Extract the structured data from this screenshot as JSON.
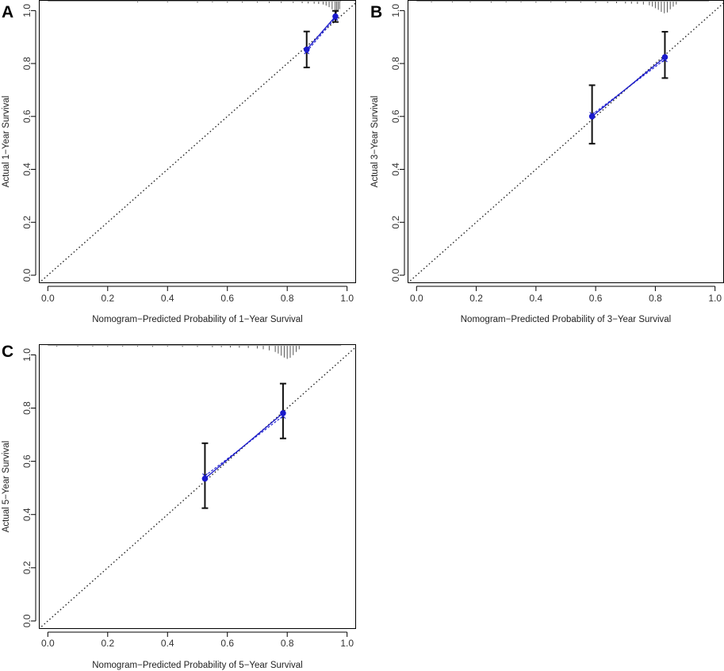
{
  "colors": {
    "calibration": "#1a1acc",
    "errorbar": "#111111",
    "ideal": "#222222",
    "rug": "#555555"
  },
  "chart_data": [
    {
      "panel": "A",
      "type": "scatter",
      "xlabel": "Nomogram−Predicted Probability of 1−Year Survival",
      "ylabel": "Actual 1−Year Survival",
      "xlim": [
        -0.03,
        1.03
      ],
      "ylim": [
        -0.03,
        1.04
      ],
      "xticks": [
        0.0,
        0.2,
        0.4,
        0.6,
        0.8,
        1.0
      ],
      "xtick_labels": [
        "0.0",
        "0.2",
        "0.4",
        "0.6",
        "0.8",
        "1.0"
      ],
      "yticks": [
        0.0,
        0.2,
        0.4,
        0.6,
        0.8,
        1.0
      ],
      "ytick_labels": [
        "0.0",
        "0.2",
        "0.4",
        "0.6",
        "0.8",
        "1.0"
      ],
      "ideal_line": true,
      "points": [
        {
          "x": 0.865,
          "y": 0.853,
          "lo": 0.785,
          "hi": 0.921,
          "y_corrected": 0.845
        },
        {
          "x": 0.961,
          "y": 0.978,
          "lo": 0.957,
          "hi": 0.999,
          "y_corrected": 0.972
        }
      ],
      "rug": [
        {
          "x": 0.3,
          "h": 0.004
        },
        {
          "x": 0.4,
          "h": 0.004
        },
        {
          "x": 0.5,
          "h": 0.005
        },
        {
          "x": 0.55,
          "h": 0.004
        },
        {
          "x": 0.6,
          "h": 0.005
        },
        {
          "x": 0.65,
          "h": 0.005
        },
        {
          "x": 0.7,
          "h": 0.005
        },
        {
          "x": 0.74,
          "h": 0.006
        },
        {
          "x": 0.78,
          "h": 0.006
        },
        {
          "x": 0.82,
          "h": 0.006
        },
        {
          "x": 0.85,
          "h": 0.007
        },
        {
          "x": 0.87,
          "h": 0.008
        },
        {
          "x": 0.89,
          "h": 0.009
        },
        {
          "x": 0.905,
          "h": 0.01
        },
        {
          "x": 0.92,
          "h": 0.012
        },
        {
          "x": 0.93,
          "h": 0.016
        },
        {
          "x": 0.94,
          "h": 0.022
        },
        {
          "x": 0.95,
          "h": 0.03
        },
        {
          "x": 0.96,
          "h": 0.04
        },
        {
          "x": 0.965,
          "h": 0.045
        },
        {
          "x": 0.97,
          "h": 0.04
        },
        {
          "x": 0.975,
          "h": 0.03
        }
      ]
    },
    {
      "panel": "B",
      "type": "scatter",
      "xlabel": "Nomogram−Predicted Probability of 3−Year Survival",
      "ylabel": "Actual 3−Year Survival",
      "xlim": [
        -0.03,
        1.03
      ],
      "ylim": [
        -0.03,
        1.04
      ],
      "xticks": [
        0.0,
        0.2,
        0.4,
        0.6,
        0.8,
        1.0
      ],
      "xtick_labels": [
        "0.0",
        "0.2",
        "0.4",
        "0.6",
        "0.8",
        "1.0"
      ],
      "yticks": [
        0.0,
        0.2,
        0.4,
        0.6,
        0.8,
        1.0
      ],
      "ytick_labels": [
        "0.0",
        "0.2",
        "0.4",
        "0.6",
        "0.8",
        "1.0"
      ],
      "ideal_line": true,
      "points": [
        {
          "x": 0.588,
          "y": 0.6,
          "lo": 0.497,
          "hi": 0.718,
          "y_corrected": 0.607
        },
        {
          "x": 0.832,
          "y": 0.824,
          "lo": 0.745,
          "hi": 0.92,
          "y_corrected": 0.815
        }
      ],
      "rug": [
        {
          "x": 0.05,
          "h": 0.004
        },
        {
          "x": 0.12,
          "h": 0.004
        },
        {
          "x": 0.18,
          "h": 0.004
        },
        {
          "x": 0.25,
          "h": 0.005
        },
        {
          "x": 0.3,
          "h": 0.004
        },
        {
          "x": 0.35,
          "h": 0.004
        },
        {
          "x": 0.4,
          "h": 0.005
        },
        {
          "x": 0.45,
          "h": 0.004
        },
        {
          "x": 0.5,
          "h": 0.005
        },
        {
          "x": 0.55,
          "h": 0.005
        },
        {
          "x": 0.6,
          "h": 0.006
        },
        {
          "x": 0.64,
          "h": 0.006
        },
        {
          "x": 0.67,
          "h": 0.007
        },
        {
          "x": 0.7,
          "h": 0.008
        },
        {
          "x": 0.72,
          "h": 0.009
        },
        {
          "x": 0.74,
          "h": 0.01
        },
        {
          "x": 0.76,
          "h": 0.012
        },
        {
          "x": 0.78,
          "h": 0.015
        },
        {
          "x": 0.79,
          "h": 0.02
        },
        {
          "x": 0.8,
          "h": 0.026
        },
        {
          "x": 0.81,
          "h": 0.032
        },
        {
          "x": 0.82,
          "h": 0.04
        },
        {
          "x": 0.83,
          "h": 0.045
        },
        {
          "x": 0.84,
          "h": 0.042
        },
        {
          "x": 0.85,
          "h": 0.03
        },
        {
          "x": 0.86,
          "h": 0.02
        },
        {
          "x": 0.87,
          "h": 0.012
        }
      ]
    },
    {
      "panel": "C",
      "type": "scatter",
      "xlabel": "Nomogram−Predicted Probability of 5−Year Survival",
      "ylabel": "Actual 5−Year Survival",
      "xlim": [
        -0.03,
        1.03
      ],
      "ylim": [
        -0.03,
        1.04
      ],
      "xticks": [
        0.0,
        0.2,
        0.4,
        0.6,
        0.8,
        1.0
      ],
      "xtick_labels": [
        "0.0",
        "0.2",
        "0.4",
        "0.6",
        "0.8",
        "1.0"
      ],
      "yticks": [
        0.0,
        0.2,
        0.4,
        0.6,
        0.8,
        1.0
      ],
      "ytick_labels": [
        "0.0",
        "0.2",
        "0.4",
        "0.6",
        "0.8",
        "1.0"
      ],
      "ideal_line": true,
      "points": [
        {
          "x": 0.525,
          "y": 0.535,
          "lo": 0.424,
          "hi": 0.668,
          "y_corrected": 0.545
        },
        {
          "x": 0.786,
          "y": 0.781,
          "lo": 0.686,
          "hi": 0.892,
          "y_corrected": 0.77
        }
      ],
      "rug": [
        {
          "x": 0.03,
          "h": 0.004
        },
        {
          "x": 0.1,
          "h": 0.004
        },
        {
          "x": 0.15,
          "h": 0.004
        },
        {
          "x": 0.2,
          "h": 0.005
        },
        {
          "x": 0.25,
          "h": 0.004
        },
        {
          "x": 0.3,
          "h": 0.004
        },
        {
          "x": 0.35,
          "h": 0.005
        },
        {
          "x": 0.4,
          "h": 0.004
        },
        {
          "x": 0.45,
          "h": 0.005
        },
        {
          "x": 0.5,
          "h": 0.005
        },
        {
          "x": 0.55,
          "h": 0.006
        },
        {
          "x": 0.58,
          "h": 0.006
        },
        {
          "x": 0.61,
          "h": 0.007
        },
        {
          "x": 0.64,
          "h": 0.008
        },
        {
          "x": 0.67,
          "h": 0.009
        },
        {
          "x": 0.7,
          "h": 0.011
        },
        {
          "x": 0.72,
          "h": 0.014
        },
        {
          "x": 0.74,
          "h": 0.018
        },
        {
          "x": 0.76,
          "h": 0.024
        },
        {
          "x": 0.77,
          "h": 0.03
        },
        {
          "x": 0.78,
          "h": 0.038
        },
        {
          "x": 0.79,
          "h": 0.045
        },
        {
          "x": 0.8,
          "h": 0.05
        },
        {
          "x": 0.81,
          "h": 0.046
        },
        {
          "x": 0.82,
          "h": 0.036
        },
        {
          "x": 0.83,
          "h": 0.024
        },
        {
          "x": 0.84,
          "h": 0.014
        }
      ]
    }
  ]
}
